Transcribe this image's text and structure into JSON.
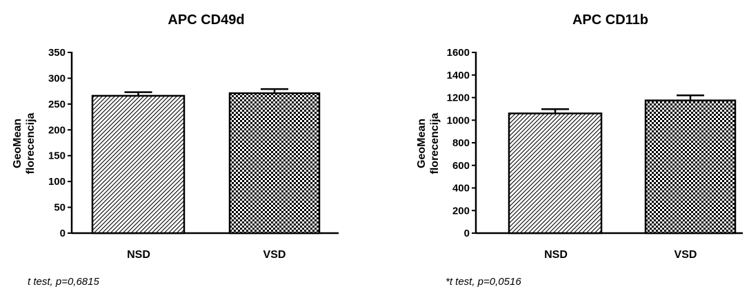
{
  "chart_data": [
    {
      "type": "bar",
      "title": "APC CD49d",
      "ylabel": [
        "GeoMean",
        "florecencija"
      ],
      "categories": [
        "NSD",
        "VSD"
      ],
      "values": [
        266,
        271
      ],
      "errors": [
        7,
        8
      ],
      "patterns": [
        "diagonal-hatch",
        "checkerboard"
      ],
      "ylim": [
        0,
        350
      ],
      "yticks": [
        0,
        50,
        100,
        150,
        200,
        250,
        300,
        350
      ],
      "note": "t test, p=0,6815"
    },
    {
      "type": "bar",
      "title": "APC CD11b",
      "ylabel": [
        "GeoMean",
        "florecencija"
      ],
      "categories": [
        "NSD",
        "VSD"
      ],
      "values": [
        1060,
        1175
      ],
      "errors": [
        38,
        45
      ],
      "patterns": [
        "diagonal-hatch",
        "checkerboard"
      ],
      "ylim": [
        0,
        1600
      ],
      "yticks": [
        0,
        200,
        400,
        600,
        800,
        1000,
        1200,
        1400,
        1600
      ],
      "note": "*t test, p=0,0516"
    }
  ]
}
